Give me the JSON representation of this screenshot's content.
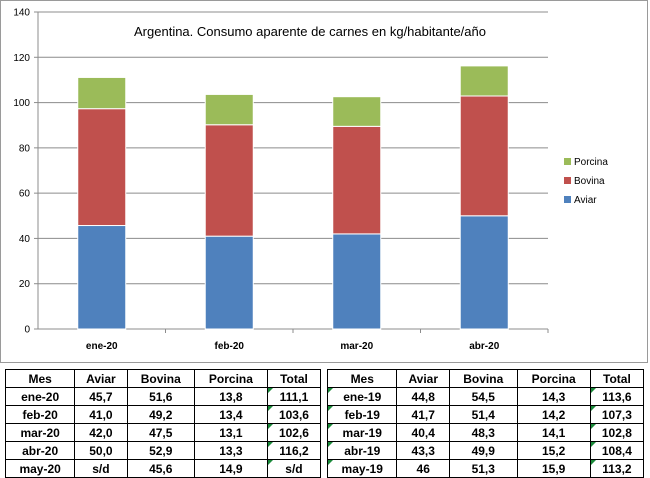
{
  "chart_data": {
    "type": "bar",
    "stacked": true,
    "title": "Argentina. Consumo aparente de carnes en kg/habitante/año",
    "categories": [
      "ene-20",
      "feb-20",
      "mar-20",
      "abr-20"
    ],
    "series": [
      {
        "name": "Aviar",
        "values": [
          45.7,
          41.0,
          42.0,
          50.0
        ],
        "color": "#4f81bd"
      },
      {
        "name": "Bovina",
        "values": [
          51.6,
          49.2,
          47.5,
          52.9
        ],
        "color": "#c0504d"
      },
      {
        "name": "Porcina",
        "values": [
          13.8,
          13.4,
          13.1,
          13.3
        ],
        "color": "#9bbb59"
      }
    ],
    "ylim": [
      0,
      140
    ],
    "yticks": [
      0,
      20,
      40,
      60,
      80,
      100,
      120,
      140
    ],
    "grid": true,
    "legend": "right"
  },
  "tables": {
    "t2020": {
      "headers": [
        "Mes",
        "Aviar",
        "Bovina",
        "Porcina",
        "Total"
      ],
      "rows": [
        [
          "ene-20",
          "45,7",
          "51,6",
          "13,8",
          "111,1"
        ],
        [
          "feb-20",
          "41,0",
          "49,2",
          "13,4",
          "103,6"
        ],
        [
          "mar-20",
          "42,0",
          "47,5",
          "13,1",
          "102,6"
        ],
        [
          "abr-20",
          "50,0",
          "52,9",
          "13,3",
          "116,2"
        ],
        [
          "may-20",
          "s/d",
          "45,6",
          "14,9",
          "s/d"
        ]
      ]
    },
    "t2019": {
      "headers": [
        "Mes",
        "Aviar",
        "Bovina",
        "Porcina",
        "Total"
      ],
      "rows": [
        [
          "ene-19",
          "44,8",
          "54,5",
          "14,3",
          "113,6"
        ],
        [
          "feb-19",
          "41,7",
          "51,4",
          "14,2",
          "107,3"
        ],
        [
          "mar-19",
          "40,4",
          "48,3",
          "14,1",
          "102,8"
        ],
        [
          "abr-19",
          "43,3",
          "49,9",
          "15,2",
          "108,4"
        ],
        [
          "may-19",
          "46",
          "51,3",
          "15,9",
          "113,2"
        ]
      ]
    }
  }
}
